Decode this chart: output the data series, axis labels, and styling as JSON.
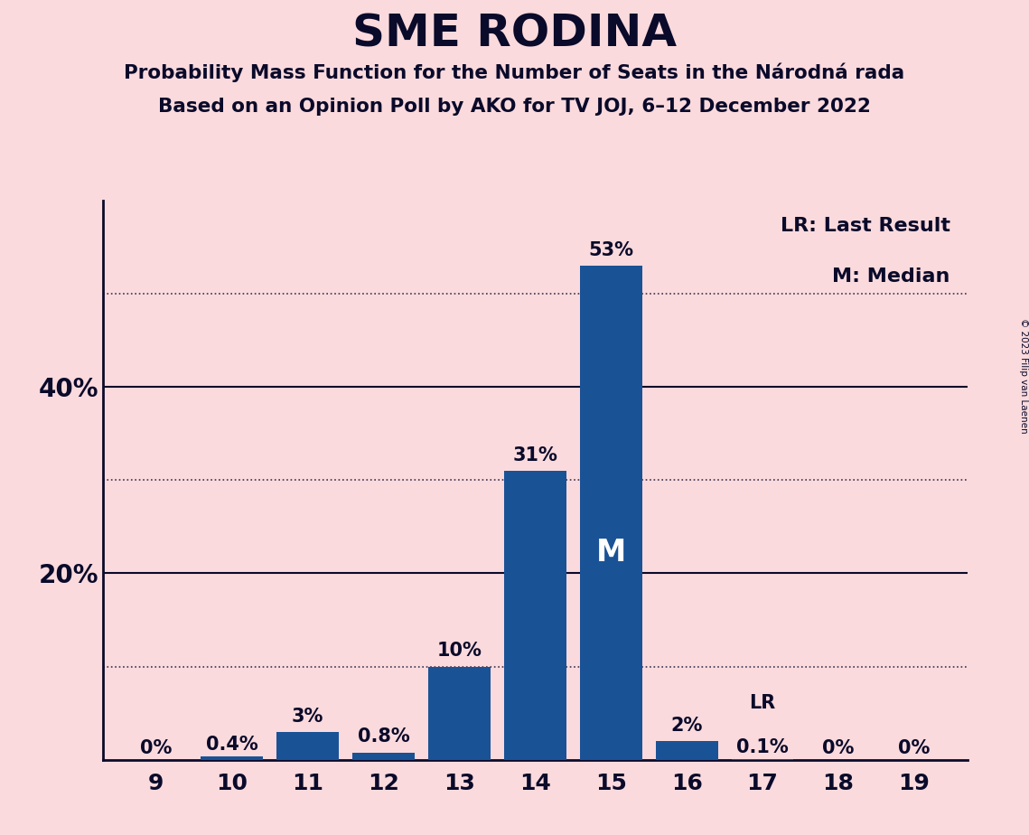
{
  "title": "SME RODINA",
  "subtitle1": "Probability Mass Function for the Number of Seats in the Národná rada",
  "subtitle2": "Based on an Opinion Poll by AKO for TV JOJ, 6–12 December 2022",
  "copyright": "© 2023 Filip van Laenen",
  "seats": [
    9,
    10,
    11,
    12,
    13,
    14,
    15,
    16,
    17,
    18,
    19
  ],
  "probabilities": [
    0.0,
    0.4,
    3.0,
    0.8,
    10.0,
    31.0,
    53.0,
    2.0,
    0.1,
    0.0,
    0.0
  ],
  "labels": [
    "0%",
    "0.4%",
    "3%",
    "0.8%",
    "10%",
    "31%",
    "53%",
    "2%",
    "0.1%",
    "0%",
    "0%"
  ],
  "bar_color": "#1a5296",
  "background_color": "#fadadd",
  "text_color": "#0a0a2a",
  "median_seat": 15,
  "lr_seat": 17,
  "yticks": [
    20,
    40
  ],
  "dotted_lines": [
    10,
    30,
    50
  ],
  "ylim": [
    0,
    60
  ]
}
